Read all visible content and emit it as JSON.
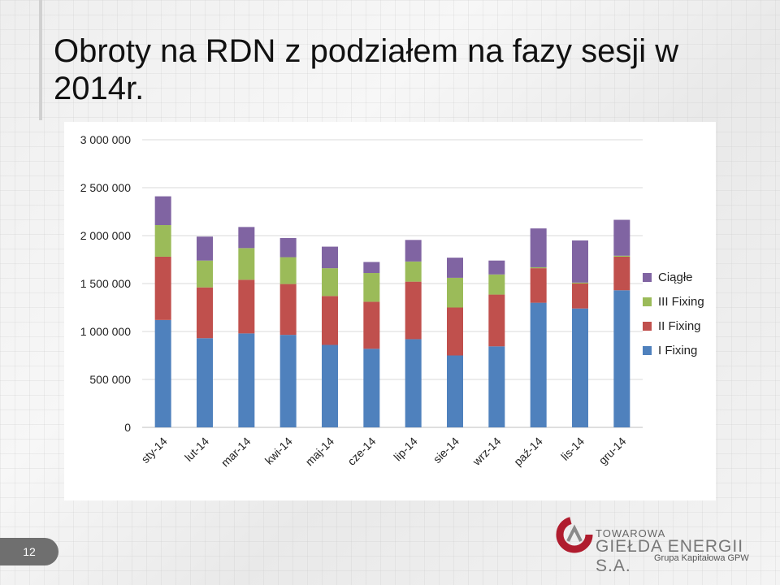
{
  "slide": {
    "title": "Obroty na RDN z podziałem na fazy sesji w 2014r.",
    "page_number": "12"
  },
  "logo": {
    "line1": "TOWAROWA",
    "line2": "GIEŁDA ENERGII S.A.",
    "line3": "Grupa Kapitałowa GPW"
  },
  "chart_data": {
    "type": "bar",
    "stacked": true,
    "categories": [
      "sty-14",
      "lut-14",
      "mar-14",
      "kwi-14",
      "maj-14",
      "cze-14",
      "lip-14",
      "sie-14",
      "wrz-14",
      "paź-14",
      "lis-14",
      "gru-14"
    ],
    "ylim": [
      0,
      3000000
    ],
    "yticks": [
      0,
      500000,
      1000000,
      1500000,
      2000000,
      2500000,
      3000000
    ],
    "ytick_labels": [
      "0",
      "500 000",
      "1 000 000",
      "1 500 000",
      "2 000 000",
      "2 500 000",
      "3 000 000"
    ],
    "grid": true,
    "legend_position": "right",
    "series": [
      {
        "name": "I Fixing",
        "color": "#4f81bd",
        "values": [
          1120000,
          930000,
          980000,
          965000,
          860000,
          820000,
          920000,
          750000,
          845000,
          1300000,
          1240000,
          1430000
        ]
      },
      {
        "name": "II Fixing",
        "color": "#c0504d",
        "values": [
          660000,
          530000,
          560000,
          530000,
          510000,
          490000,
          600000,
          500000,
          540000,
          360000,
          260000,
          350000
        ]
      },
      {
        "name": "III Fixing",
        "color": "#9bbb59",
        "values": [
          330000,
          280000,
          330000,
          280000,
          290000,
          300000,
          210000,
          310000,
          210000,
          10000,
          10000,
          10000
        ]
      },
      {
        "name": "Ciągłe",
        "color": "#8064a2",
        "values": [
          300000,
          250000,
          220000,
          200000,
          225000,
          115000,
          225000,
          210000,
          145000,
          405000,
          440000,
          375000
        ]
      }
    ]
  }
}
